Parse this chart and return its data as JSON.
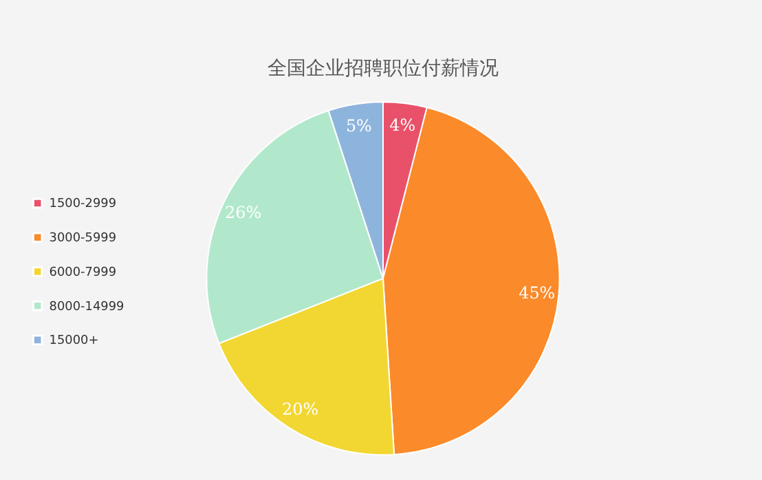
{
  "chart_data": {
    "type": "pie",
    "title": "全国企业招聘职位付薪情况",
    "categories": [
      "1500-2999",
      "3000-5999",
      "6000-7999",
      "8000-14999",
      "15000+"
    ],
    "values": [
      4,
      45,
      20,
      26,
      5
    ],
    "colors": [
      "#e9516a",
      "#fb8a2a",
      "#f2d733",
      "#b1e8cb",
      "#8db4dc"
    ],
    "value_labels": [
      "4%",
      "45%",
      "20%",
      "26%",
      "5%"
    ],
    "legend": "left"
  }
}
